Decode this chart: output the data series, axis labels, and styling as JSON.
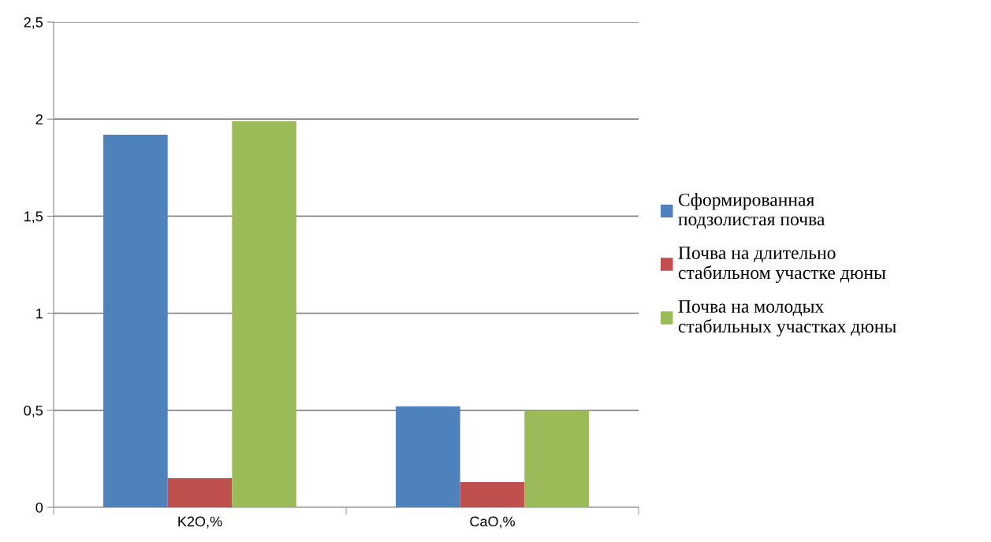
{
  "chart_data": {
    "type": "bar",
    "categories": [
      "K2O,%",
      "CaO,%"
    ],
    "series": [
      {
        "name": "Сформированная\nподзолистая почва",
        "color": "#4f81bd",
        "values": [
          1.92,
          0.52
        ]
      },
      {
        "name": "Почва на длительно\nстабильном участке дюны",
        "color": "#c0504d",
        "values": [
          0.15,
          0.13
        ]
      },
      {
        "name": "Почва на молодых\nстабильных участках дюны",
        "color": "#9bbb59",
        "values": [
          1.99,
          0.5
        ]
      }
    ],
    "ylim": [
      0,
      2.5
    ],
    "yticks": [
      0,
      {
        "value": 0.5,
        "label": "0,5"
      },
      1,
      {
        "value": 1.5,
        "label": "1,5"
      },
      2,
      {
        "value": 2.5,
        "label": "2,5"
      }
    ],
    "grid": "y",
    "legend": "right"
  }
}
